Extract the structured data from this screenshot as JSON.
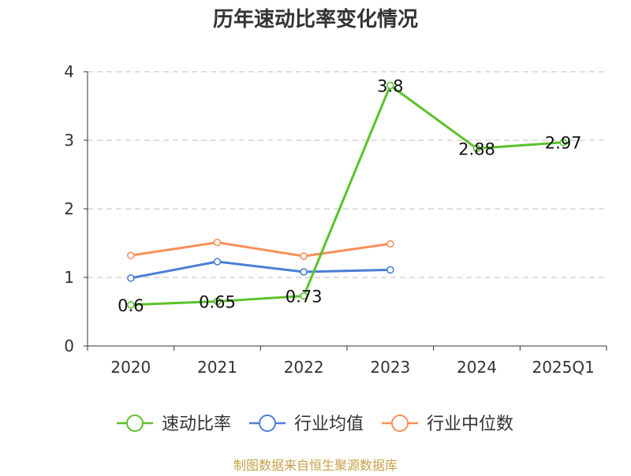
{
  "chart_data": {
    "type": "line",
    "title": "历年速动比率变化情况",
    "categories": [
      "2020",
      "2021",
      "2022",
      "2023",
      "2024",
      "2025Q1"
    ],
    "ylim": [
      0,
      4
    ],
    "yticks": [
      "0",
      "1",
      "2",
      "3",
      "4"
    ],
    "grid": true,
    "legend_position": "bottom",
    "series": [
      {
        "name": "速动比率",
        "color": "#5bc22a",
        "values": [
          0.6,
          0.65,
          0.73,
          3.8,
          2.88,
          2.97
        ],
        "labels": [
          "0.6",
          "0.65",
          "0.73",
          "3.8",
          "2.88",
          "2.97"
        ],
        "show_labels": true
      },
      {
        "name": "行业均值",
        "color": "#4a7fd6",
        "values": [
          0.99,
          1.23,
          1.08,
          1.11,
          null,
          null
        ],
        "show_labels": false
      },
      {
        "name": "行业中位数",
        "color": "#f7905a",
        "values": [
          1.32,
          1.51,
          1.31,
          1.49,
          null,
          null
        ],
        "show_labels": false
      }
    ]
  },
  "source": "制图数据来自恒生聚源数据库"
}
